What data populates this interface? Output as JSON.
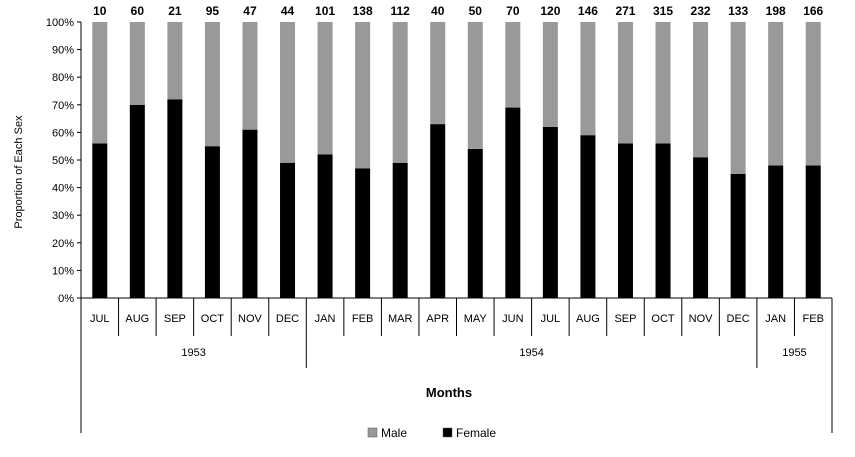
{
  "chart_data": {
    "type": "bar",
    "stacked": true,
    "normalized": true,
    "categories": [
      "JUL",
      "AUG",
      "SEP",
      "OCT",
      "NOV",
      "DEC",
      "JAN",
      "FEB",
      "MAR",
      "APR",
      "MAY",
      "JUN",
      "JUL",
      "AUG",
      "SEP",
      "OCT",
      "NOV",
      "DEC",
      "JAN",
      "FEB"
    ],
    "year_groups": [
      {
        "label": "1953",
        "count": 6
      },
      {
        "label": "1954",
        "count": 12
      },
      {
        "label": "1955",
        "count": 2
      }
    ],
    "sample_sizes": [
      "10",
      "60",
      "21",
      "95",
      "47",
      "44",
      "101",
      "138",
      "112",
      "40",
      "50",
      "70",
      "120",
      "146",
      "271",
      "315",
      "232",
      "133",
      "198",
      "166"
    ],
    "series": [
      {
        "name": "Female",
        "color": "#000000",
        "values": [
          0.56,
          0.7,
          0.72,
          0.55,
          0.61,
          0.49,
          0.52,
          0.47,
          0.49,
          0.63,
          0.54,
          0.69,
          0.62,
          0.59,
          0.56,
          0.56,
          0.51,
          0.45,
          0.48,
          0.48
        ]
      },
      {
        "name": "Male",
        "color": "#999999",
        "values": [
          0.44,
          0.3,
          0.28,
          0.45,
          0.39,
          0.51,
          0.48,
          0.53,
          0.51,
          0.37,
          0.46,
          0.31,
          0.38,
          0.41,
          0.44,
          0.44,
          0.49,
          0.55,
          0.52,
          0.52
        ]
      }
    ],
    "legend_order": [
      "Male",
      "Female"
    ],
    "xlabel": "Months",
    "ylabel": "Proportion of Each Sex",
    "ylim": [
      0,
      1
    ],
    "yticks": [
      "0%",
      "10%",
      "20%",
      "30%",
      "40%",
      "50%",
      "60%",
      "70%",
      "80%",
      "90%",
      "100%"
    ],
    "grid": false,
    "legend_position": "bottom"
  }
}
